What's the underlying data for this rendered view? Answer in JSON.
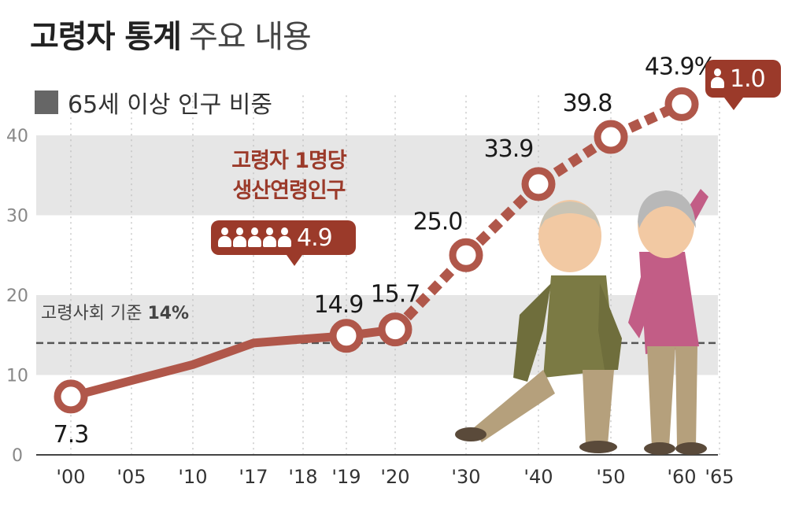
{
  "title": {
    "bold": "고령자 통계",
    "rest": "주요 내용"
  },
  "legend": {
    "label": "65세 이상 인구 비중",
    "color": "#666666"
  },
  "ratio_caption": {
    "line1": "고령자 1명당",
    "line2": "생산연령인구"
  },
  "ratio_bubbles": [
    {
      "value": "4.9",
      "people_icons": 5
    },
    {
      "value": "1.0",
      "people_icons": 1
    }
  ],
  "threshold": {
    "label_text": "고령사회 기준 ",
    "label_value": "14%",
    "value": 14
  },
  "colors": {
    "line": "#b0574a",
    "marker_border": "#b0574a",
    "bubble": "#9b3a2a",
    "band": "#e6e6e6",
    "axis_text": "#888888"
  },
  "chart_data": {
    "type": "line",
    "title": "고령자 통계 주요 내용",
    "xlabel": "",
    "ylabel": "",
    "ylim": [
      0,
      40
    ],
    "yticks": [
      0,
      10,
      20,
      30,
      40
    ],
    "x_tick_labels": [
      "'00",
      "'05",
      "'10",
      "'17",
      "'18",
      "'19",
      "'20",
      "'30",
      "'40",
      "'50",
      "'60",
      "'65"
    ],
    "series": [
      {
        "name": "65세 이상 인구 비중",
        "points": [
          {
            "x": "'00",
            "y": 7.3,
            "label": "7.3",
            "marker": true
          },
          {
            "x": "'05",
            "y": 9.3,
            "label": "",
            "marker": false
          },
          {
            "x": "'10",
            "y": 11.3,
            "label": "",
            "marker": false
          },
          {
            "x": "'17",
            "y": 14.0,
            "label": "",
            "marker": false
          },
          {
            "x": "'18",
            "y": 14.5,
            "label": "",
            "marker": false
          },
          {
            "x": "'19",
            "y": 14.9,
            "label": "14.9",
            "marker": true
          },
          {
            "x": "'20",
            "y": 15.7,
            "label": "15.7",
            "marker": true
          },
          {
            "x": "'30",
            "y": 25.0,
            "label": "25.0",
            "marker": true
          },
          {
            "x": "'40",
            "y": 33.9,
            "label": "33.9",
            "marker": true
          },
          {
            "x": "'50",
            "y": 39.8,
            "label": "39.8",
            "marker": true
          },
          {
            "x": "'60",
            "y": 43.9,
            "label": "43.9%",
            "marker": true
          }
        ],
        "projected_from": "'20"
      }
    ],
    "reference_line": {
      "y": 14,
      "style": "dashed",
      "label": "고령사회 기준 14%"
    },
    "grid": "alternating horizontal bands",
    "legend_position": "top-left"
  }
}
